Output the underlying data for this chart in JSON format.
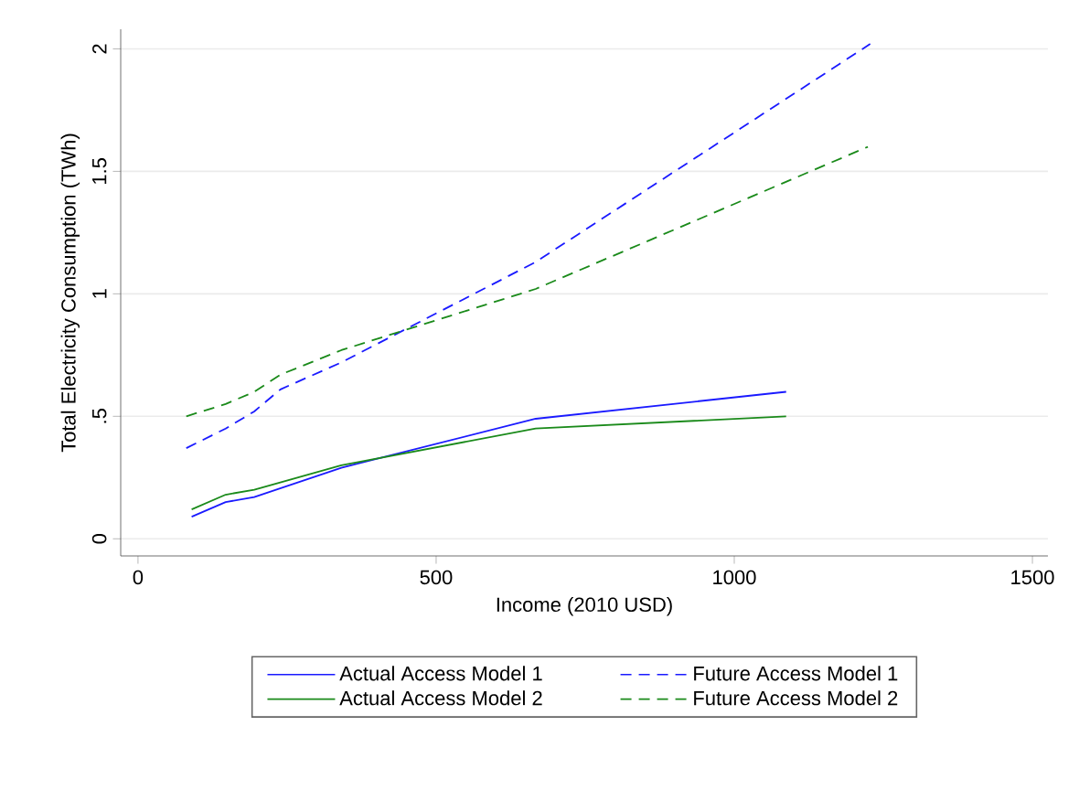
{
  "chart_data": {
    "type": "line",
    "xlabel": "Income (2010 USD)",
    "ylabel": "Total Electricity Consumption (TWh)",
    "xlim": [
      -29,
      1526
    ],
    "ylim": [
      -0.07,
      2.08
    ],
    "xticks": [
      0,
      500,
      1000,
      1500
    ],
    "yticks": [
      0,
      {
        "value": 0.5,
        "label": ".5"
      },
      1,
      1.5,
      2
    ],
    "grid": "y",
    "legend": "bottom",
    "marker": "none",
    "series": [
      {
        "name": "Actual Access Model 1",
        "color": "#1a1aff",
        "line_style": "solid",
        "x": [
          90,
          147,
          195,
          341,
          667,
          1087
        ],
        "values": [
          0.09,
          0.15,
          0.17,
          0.29,
          0.49,
          0.6
        ]
      },
      {
        "name": "Future Access Model 1",
        "color": "#1a1aff",
        "line_style": "dashed",
        "x": [
          81,
          147,
          195,
          239,
          341,
          667,
          1228
        ],
        "values": [
          0.37,
          0.45,
          0.52,
          0.61,
          0.72,
          1.13,
          2.02
        ]
      },
      {
        "name": "Actual Access Model 2",
        "color": "#1a8a1a",
        "line_style": "solid",
        "x": [
          90,
          147,
          195,
          341,
          667,
          1087
        ],
        "values": [
          0.12,
          0.18,
          0.2,
          0.3,
          0.45,
          0.5
        ]
      },
      {
        "name": "Future Access Model 2",
        "color": "#1a8a1a",
        "line_style": "dashed",
        "x": [
          81,
          147,
          195,
          239,
          341,
          667,
          1224
        ],
        "values": [
          0.5,
          0.55,
          0.6,
          0.67,
          0.77,
          1.02,
          1.6
        ]
      }
    ]
  }
}
